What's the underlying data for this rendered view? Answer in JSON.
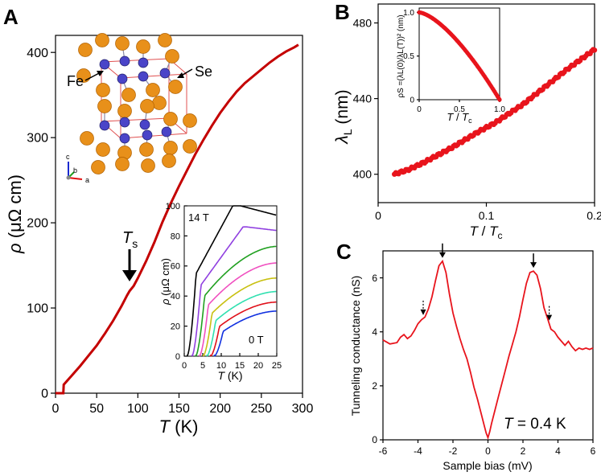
{
  "panel_labels": {
    "a": "A",
    "b": "B",
    "c": "C"
  },
  "colors": {
    "red": "#e8141c",
    "dark_red": "#c40000",
    "se_atom": "#e8901a",
    "fe_atom": "#4a44c8",
    "cell": "#e05050"
  },
  "chart_data": [
    {
      "id": "panelA_main",
      "type": "line",
      "xlabel_sym": "T",
      "xlabel_unit": " (K)",
      "ylabel_sym": "ρ",
      "ylabel_unit": " (μΩ cm)",
      "xlim": [
        0,
        300
      ],
      "ylim": [
        0,
        420
      ],
      "xticks": [
        0,
        50,
        100,
        150,
        200,
        250,
        300
      ],
      "yticks": [
        0,
        100,
        200,
        300,
        400
      ],
      "series": [
        {
          "name": "rho(T)",
          "x": [
            8.5,
            9.5,
            10,
            20,
            30,
            40,
            50,
            60,
            70,
            80,
            87,
            90,
            95,
            100,
            110,
            120,
            130,
            140,
            150,
            160,
            170,
            180,
            190,
            200,
            210,
            220,
            230,
            240,
            250,
            260,
            270,
            280,
            290,
            295
          ],
          "y": [
            0,
            0,
            10,
            21,
            32,
            44,
            56,
            70,
            85,
            102,
            115,
            120,
            126,
            135,
            155,
            177,
            201,
            223,
            243,
            262,
            281,
            298,
            314,
            329,
            342,
            354,
            364,
            372,
            380,
            388,
            395,
            401,
            406,
            409
          ]
        }
      ],
      "annotation": {
        "symbol": "T",
        "subscript": "s",
        "x": 90
      },
      "structure_labels": {
        "fe": "Fe",
        "se": "Se",
        "axis_c": "c",
        "axis_b": "b",
        "axis_a": "a"
      }
    },
    {
      "id": "panelA_inset",
      "type": "line",
      "xlabel_sym": "T",
      "xlabel_unit": " (K)",
      "ylabel_sym": "ρ",
      "ylabel_unit": " (μΩ cm)",
      "xlim": [
        0,
        25
      ],
      "ylim": [
        0,
        100
      ],
      "xticks": [
        0,
        5,
        10,
        15,
        20,
        25
      ],
      "yticks": [
        0,
        20,
        40,
        60,
        80,
        100
      ],
      "field_labels": {
        "top": "14 T",
        "bottom": "0 T"
      },
      "series": [
        {
          "name": "0 T",
          "color": "#1030e0",
          "Tc": 9.5,
          "end": 30
        },
        {
          "name": "1 T",
          "color": "#e0101a",
          "Tc": 8.5,
          "end": 36
        },
        {
          "name": "3 T",
          "color": "#30e0b0",
          "Tc": 7.5,
          "end": 43
        },
        {
          "name": "5 T",
          "color": "#c8c010",
          "Tc": 6.5,
          "end": 52
        },
        {
          "name": "7 T",
          "color": "#f050c0",
          "Tc": 5.5,
          "end": 62
        },
        {
          "name": "9 T",
          "color": "#20a020",
          "Tc": 4.5,
          "end": 73
        },
        {
          "name": "11 T",
          "color": "#9040e0",
          "Tc": 3.5,
          "end": 86
        },
        {
          "name": "14 T",
          "color": "#000000",
          "Tc": 2.2,
          "end": 100
        }
      ]
    },
    {
      "id": "panelB_main",
      "type": "scatter",
      "xlabel_sym": "T",
      "xlabel_sep": " / ",
      "xlabel_sym2": "T",
      "xlabel_sub2": "c",
      "ylabel_sym": "λ",
      "ylabel_sub": "L",
      "ylabel_unit": " (nm)",
      "xlim": [
        0,
        0.2
      ],
      "ylim": [
        385,
        490
      ],
      "xticks": [
        0,
        0.1,
        0.2
      ],
      "xticklabels": [
        "0",
        "0.1",
        "0.2"
      ],
      "yticks": [
        400,
        440,
        480
      ],
      "series": [
        {
          "name": "lambda_L",
          "x_start": 0.015,
          "x_end": 0.2,
          "y": [
            400,
            402.5,
            406,
            410,
            414,
            418.5,
            423,
            427,
            432,
            437,
            443,
            449,
            455,
            460.5,
            466
          ]
        }
      ]
    },
    {
      "id": "panelB_inset",
      "type": "scatter",
      "xlabel_sym": "T",
      "xlabel_sep": " / ",
      "xlabel_sym2": "T",
      "xlabel_sub2": "c",
      "ylabel": "ρS =(λL(0)/λL(T))² (nm)",
      "xlim": [
        0,
        1
      ],
      "ylim": [
        0,
        1.05
      ],
      "xticks": [
        0,
        0.5,
        1
      ],
      "xticklabels": [
        "0",
        "0.5",
        "1.0"
      ],
      "yticks": [
        0,
        0.5,
        1
      ],
      "yticklabels": [
        "0",
        "0.5",
        "1.0"
      ],
      "series": [
        {
          "name": "rho_s",
          "formula": "1 - t^1.5"
        }
      ]
    },
    {
      "id": "panelC",
      "type": "line",
      "xlabel": "Sample bias (mV)",
      "ylabel": "Tunneling conductance (nS)",
      "xlim": [
        -6,
        6
      ],
      "ylim": [
        0,
        7
      ],
      "xticks": [
        -6,
        -4,
        -2,
        0,
        2,
        4,
        6
      ],
      "yticks": [
        0,
        2,
        4,
        6
      ],
      "annotation": {
        "symbol": "T",
        "value": " = 0.4 K"
      },
      "solid_arrows_x": [
        -2.6,
        2.6
      ],
      "dotted_arrows_x": [
        -3.7,
        3.5
      ],
      "series": [
        {
          "name": "dI/dV",
          "x": [
            -6.0,
            -5.6,
            -5.2,
            -5.0,
            -4.8,
            -4.6,
            -4.4,
            -4.2,
            -4.0,
            -3.8,
            -3.6,
            -3.4,
            -3.2,
            -3.0,
            -2.8,
            -2.6,
            -2.4,
            -2.2,
            -2.0,
            -1.8,
            -1.6,
            -1.4,
            -1.2,
            -1.0,
            -0.8,
            -0.6,
            -0.4,
            -0.2,
            -0.1,
            0.0,
            0.1,
            0.2,
            0.4,
            0.6,
            0.8,
            1.0,
            1.2,
            1.4,
            1.6,
            1.8,
            2.0,
            2.2,
            2.4,
            2.6,
            2.8,
            3.0,
            3.2,
            3.4,
            3.6,
            3.8,
            4.0,
            4.2,
            4.4,
            4.6,
            4.8,
            5.0,
            5.2,
            5.4,
            5.6,
            5.8,
            6.0
          ],
          "y": [
            3.7,
            3.55,
            3.6,
            3.8,
            3.9,
            3.75,
            3.85,
            4.05,
            4.3,
            4.45,
            4.55,
            4.85,
            5.3,
            5.9,
            6.45,
            6.62,
            6.2,
            5.4,
            4.7,
            4.2,
            3.75,
            3.35,
            3.0,
            2.5,
            1.95,
            1.5,
            1.0,
            0.5,
            0.25,
            0.08,
            0.3,
            0.6,
            1.1,
            1.6,
            2.1,
            2.6,
            3.1,
            3.55,
            4.0,
            4.55,
            5.2,
            5.8,
            6.2,
            6.25,
            6.1,
            5.6,
            4.9,
            4.5,
            4.1,
            4.0,
            3.8,
            3.65,
            3.5,
            3.65,
            3.45,
            3.3,
            3.4,
            3.35,
            3.4,
            3.35,
            3.4
          ]
        }
      ]
    }
  ]
}
